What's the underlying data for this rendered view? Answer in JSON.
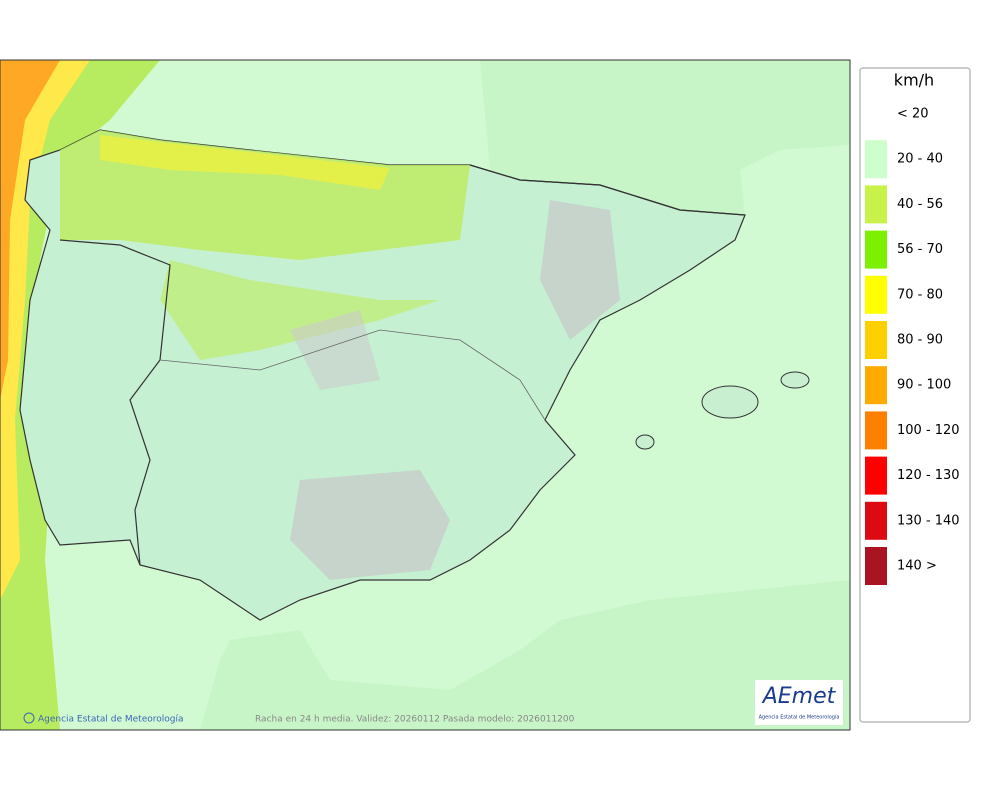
{
  "legend": {
    "unit": "km/h",
    "items": [
      {
        "label": "< 20",
        "color": "#ffffff"
      },
      {
        "label": "20 - 40",
        "color": "#ccffcc"
      },
      {
        "label": "40 - 56",
        "color": "#c8f24a"
      },
      {
        "label": "56 - 70",
        "color": "#7cf000"
      },
      {
        "label": "70 - 80",
        "color": "#ffff00"
      },
      {
        "label": "80 - 90",
        "color": "#ffd000"
      },
      {
        "label": "90 - 100",
        "color": "#ffaa00"
      },
      {
        "label": "100 - 120",
        "color": "#ff8000"
      },
      {
        "label": "120 - 130",
        "color": "#ff0000"
      },
      {
        "label": "130 - 140",
        "color": "#dd0a14"
      },
      {
        "label": "140 >",
        "color": "#aa1420"
      }
    ]
  },
  "footer": {
    "credit": "Agencia Estatal de Meteorología",
    "caption": "Racha en 24 h media. Validez: 20260112 Pasada modelo: 2026011200"
  },
  "logo": {
    "text": "AEmet",
    "subtitle": "Agencia Estatal de Meteorología"
  }
}
